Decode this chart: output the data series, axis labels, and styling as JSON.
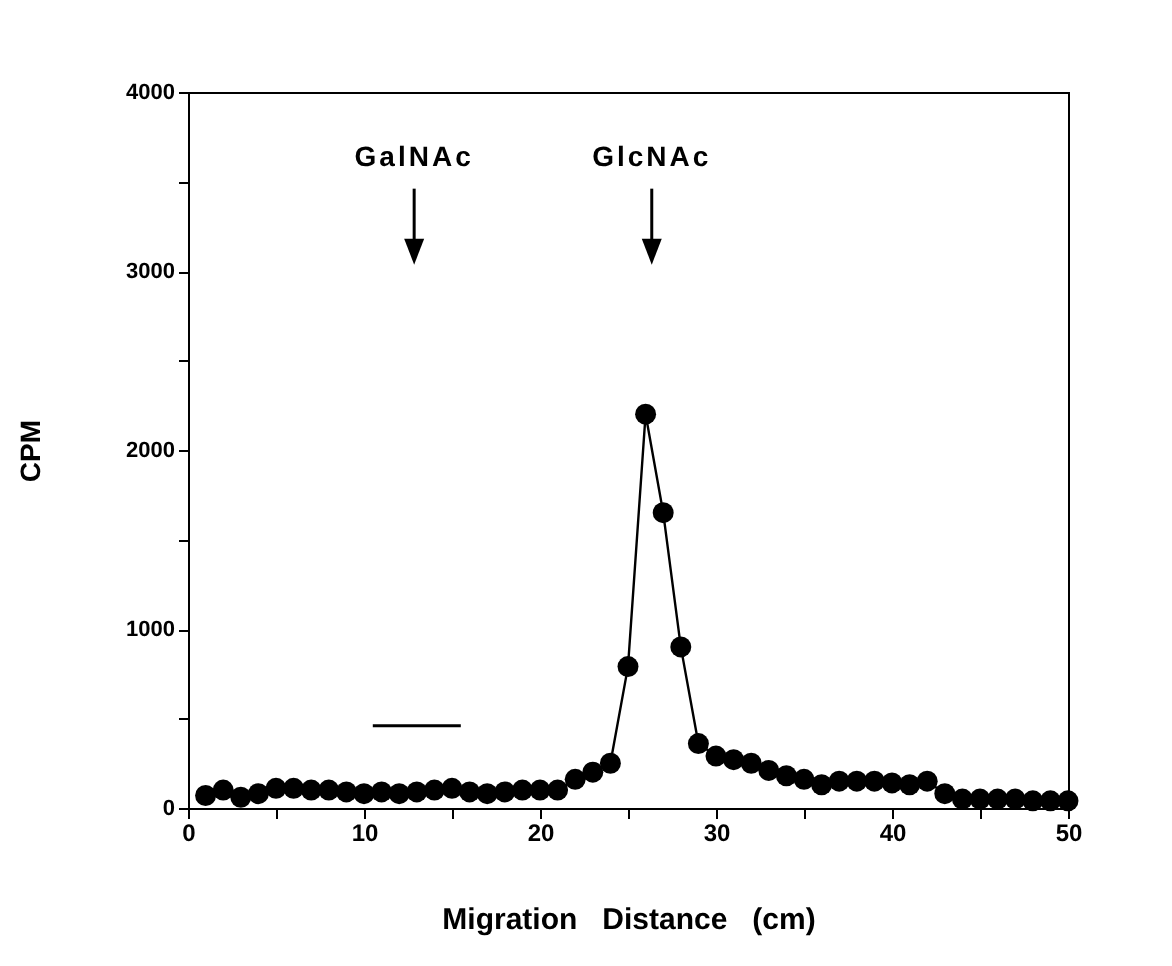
{
  "chart_data": {
    "type": "line",
    "xlabel": "Migration   Distance   (cm)",
    "ylabel": "CPM",
    "x": [
      1,
      2,
      3,
      4,
      5,
      6,
      7,
      8,
      9,
      10,
      11,
      12,
      13,
      14,
      15,
      16,
      17,
      18,
      19,
      20,
      21,
      22,
      23,
      24,
      25,
      26,
      27,
      28,
      29,
      30,
      31,
      32,
      33,
      34,
      35,
      36,
      37,
      38,
      39,
      40,
      41,
      42,
      43,
      44,
      45,
      46,
      47,
      48,
      49,
      50
    ],
    "series": [
      {
        "color": "#000000",
        "values": [
          70,
          100,
          60,
          80,
          110,
          110,
          100,
          100,
          90,
          80,
          90,
          80,
          90,
          100,
          110,
          90,
          80,
          90,
          100,
          100,
          100,
          160,
          200,
          250,
          790,
          2200,
          1650,
          900,
          360,
          290,
          270,
          250,
          210,
          180,
          160,
          130,
          150,
          150,
          150,
          140,
          130,
          150,
          80,
          50,
          50,
          50,
          50,
          40,
          40,
          40
        ]
      }
    ],
    "xlim": [
      0,
      50
    ],
    "xticks": [
      0,
      {
        "value": 5,
        "label": null
      },
      10,
      {
        "value": 15,
        "label": null
      },
      20,
      {
        "value": 25,
        "label": null
      },
      30,
      {
        "value": 35,
        "label": null
      },
      40,
      {
        "value": 45,
        "label": null
      },
      50
    ],
    "ylim": [
      0,
      4000
    ],
    "yticks": [
      0,
      {
        "value": 500,
        "label": null
      },
      1000,
      {
        "value": 1500,
        "label": null
      },
      2000,
      {
        "value": 2500,
        "label": null
      },
      3000,
      {
        "value": 3500,
        "label": null
      },
      4000
    ],
    "annotations": [
      "GalNAc",
      "GlcNAc"
    ],
    "grid": false,
    "marker": "circle",
    "line_style": "solid"
  }
}
